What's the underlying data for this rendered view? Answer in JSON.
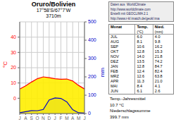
{
  "chart_data": {
    "type": "line",
    "title": "Oruro/Bolivien",
    "subtitle": [
      "17°58'S/67°7'W",
      "3710m"
    ],
    "categories": [
      "J",
      "A",
      "S",
      "O",
      "N",
      "D",
      "J",
      "F",
      "M",
      "A",
      "M",
      "J"
    ],
    "series": [
      {
        "color": "red",
        "values": [
          6.0,
          8.1,
          10.6,
          12.8,
          14.0,
          13.5,
          12.8,
          12.4,
          12.6,
          11.3,
          8.4,
          6.1
        ]
      },
      {
        "color": "#0000cc",
        "axis": "y2",
        "values": [
          4.0,
          9.8,
          16.2,
          15.3,
          21.8,
          74.2,
          84.7,
          82.4,
          63.8,
          21.0,
          4.1,
          2.6
        ]
      }
    ],
    "ylabel": "°C",
    "y2label": "mm",
    "ylim": [
      -10,
      50
    ],
    "yticks": [
      0,
      10,
      20,
      30,
      40
    ],
    "y2lim": [
      0,
      500
    ],
    "y2ticks": [
      0,
      100,
      200,
      300,
      400,
      500
    ],
    "grid": true,
    "annotations": {
      "info": [
        "Daten aus  WorldClimate",
        "http://www.worldclimate.com",
        "Erstellt mit GEOCLIMA 2.1",
        "http://www.r-kl imatch.de/geokl ima"
      ],
      "summary": [
        "Temp.-Jahresmittel",
        "10.7 °C",
        "Niederschlagssumme",
        "399.7 mm"
      ]
    },
    "table": {
      "header": [
        "Monat",
        "Temp.",
        "Nied."
      ],
      "units": [
        "(°C)",
        "(mm)"
      ],
      "rows": [
        [
          "JUL",
          "6.0",
          "4.0"
        ],
        [
          "AUG",
          "8.1",
          "9.8"
        ],
        [
          "SEP",
          "10.6",
          "16.2"
        ],
        [
          "OKT",
          "12.8",
          "15.3"
        ],
        [
          "NOV",
          "14.0",
          "21.8"
        ],
        [
          "DEZ",
          "13.5",
          "74.2"
        ],
        [
          "JAN",
          "12.8",
          "84.7"
        ],
        [
          "FEB",
          "12.4",
          "82.4"
        ],
        [
          "MRZ",
          "12.6",
          "63.8"
        ],
        [
          "APR",
          "11.3",
          "21.0"
        ],
        [
          "MAI",
          "8.4",
          "4.1"
        ],
        [
          "JUN",
          "6.1",
          "2.6"
        ]
      ]
    }
  }
}
